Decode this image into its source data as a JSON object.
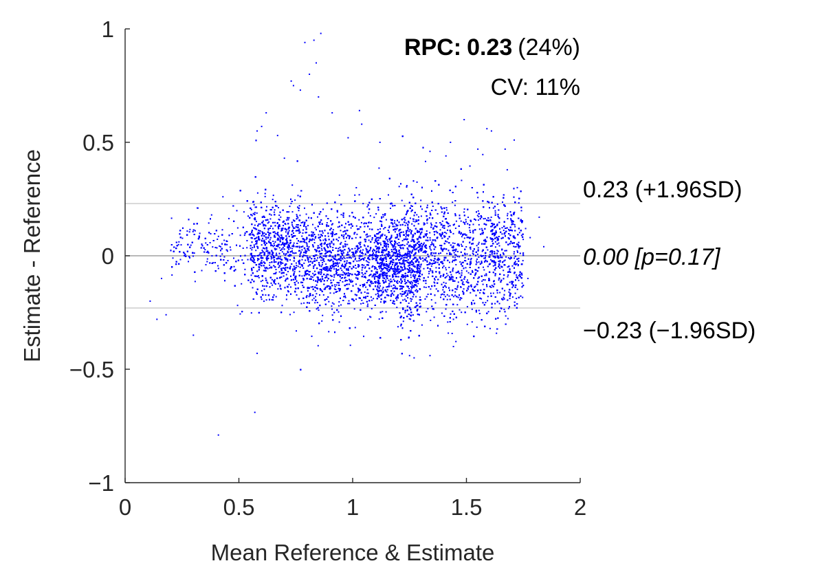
{
  "chart_data": {
    "type": "scatter",
    "title": "",
    "xlabel": "Mean Reference & Estimate",
    "ylabel": "Estimate - Reference",
    "xlim": [
      0,
      2
    ],
    "ylim": [
      -1,
      1
    ],
    "x_ticks": [
      {
        "value": 0,
        "label": "0"
      },
      {
        "value": 0.5,
        "label": "0.5"
      },
      {
        "value": 1,
        "label": "1"
      },
      {
        "value": 1.5,
        "label": "1.5"
      },
      {
        "value": 2,
        "label": "2"
      }
    ],
    "y_ticks": [
      {
        "value": -1,
        "label": "−1"
      },
      {
        "value": -0.5,
        "label": "−0.5"
      },
      {
        "value": 0,
        "label": "0"
      },
      {
        "value": 0.5,
        "label": "0.5"
      },
      {
        "value": 1,
        "label": "1"
      }
    ],
    "grid": false,
    "marker_color": "#0000ff",
    "reference_lines": [
      {
        "y": 0.23,
        "label": "0.23 (+1.96SD)",
        "color": "#c8c8c8"
      },
      {
        "y": 0.0,
        "label": "0.00 [p=0.17]",
        "color": "#a0a0a0",
        "italic": true
      },
      {
        "y": -0.23,
        "label": "−0.23 (−1.96SD)",
        "color": "#c8c8c8"
      }
    ],
    "annotations": {
      "rpc_label": "RPC:",
      "rpc_value": "0.23",
      "rpc_percent": "(24%)",
      "cv": "CV: 11%"
    },
    "point_count_estimate": 14000,
    "points": [
      {
        "x": 0.86,
        "y": 0.98
      },
      {
        "x": 0.79,
        "y": 0.94
      },
      {
        "x": 0.83,
        "y": 0.95
      },
      {
        "x": 0.81,
        "y": 0.8
      },
      {
        "x": 0.84,
        "y": 0.85
      },
      {
        "x": 0.73,
        "y": 0.77
      },
      {
        "x": 0.74,
        "y": 0.75
      },
      {
        "x": 0.77,
        "y": 0.73
      },
      {
        "x": 0.85,
        "y": 0.7
      },
      {
        "x": 0.91,
        "y": 0.63
      },
      {
        "x": 0.62,
        "y": 0.63
      },
      {
        "x": 1.03,
        "y": 0.64
      },
      {
        "x": 1.49,
        "y": 0.6
      },
      {
        "x": 1.59,
        "y": 0.56
      },
      {
        "x": 1.61,
        "y": 0.55
      },
      {
        "x": 1.71,
        "y": 0.51
      },
      {
        "x": 0.58,
        "y": 0.55
      },
      {
        "x": 1.34,
        "y": 0.46
      },
      {
        "x": 1.41,
        "y": 0.44
      },
      {
        "x": 1.82,
        "y": 0.17
      },
      {
        "x": 1.84,
        "y": 0.04
      },
      {
        "x": 0.11,
        "y": -0.2
      },
      {
        "x": 0.14,
        "y": -0.28
      },
      {
        "x": 0.18,
        "y": -0.26
      },
      {
        "x": 0.3,
        "y": -0.35
      },
      {
        "x": 0.58,
        "y": -0.43
      },
      {
        "x": 0.57,
        "y": -0.69
      },
      {
        "x": 0.41,
        "y": -0.79
      },
      {
        "x": 1.27,
        "y": -0.45
      },
      {
        "x": 1.34,
        "y": -0.44
      },
      {
        "x": 1.25,
        "y": -0.44
      },
      {
        "x": 1.77,
        "y": -0.1
      },
      {
        "x": 1.78,
        "y": 0.08
      },
      {
        "x": 1.76,
        "y": 0.12
      },
      {
        "x": 0.32,
        "y": 0.21
      },
      {
        "x": 0.43,
        "y": 0.26
      },
      {
        "x": 0.38,
        "y": 0.18
      },
      {
        "x": 0.21,
        "y": -0.01
      },
      {
        "x": 0.16,
        "y": -0.1
      },
      {
        "x": 1.04,
        "y": 0.58
      },
      {
        "x": 0.98,
        "y": 0.52
      },
      {
        "x": 1.12,
        "y": 0.5
      },
      {
        "x": 1.43,
        "y": 0.5
      },
      {
        "x": 1.67,
        "y": 0.47
      },
      {
        "x": 1.55,
        "y": 0.47
      },
      {
        "x": 0.6,
        "y": 0.57
      },
      {
        "x": 0.67,
        "y": 0.53
      },
      {
        "x": 0.7,
        "y": 0.43
      }
    ],
    "distribution": {
      "center_x": [
        0.5,
        1.75
      ],
      "main_spread_y": 0.12,
      "note": "dense cloud, densest near x 0.6-1.4, y 0 ± 0.15"
    }
  }
}
